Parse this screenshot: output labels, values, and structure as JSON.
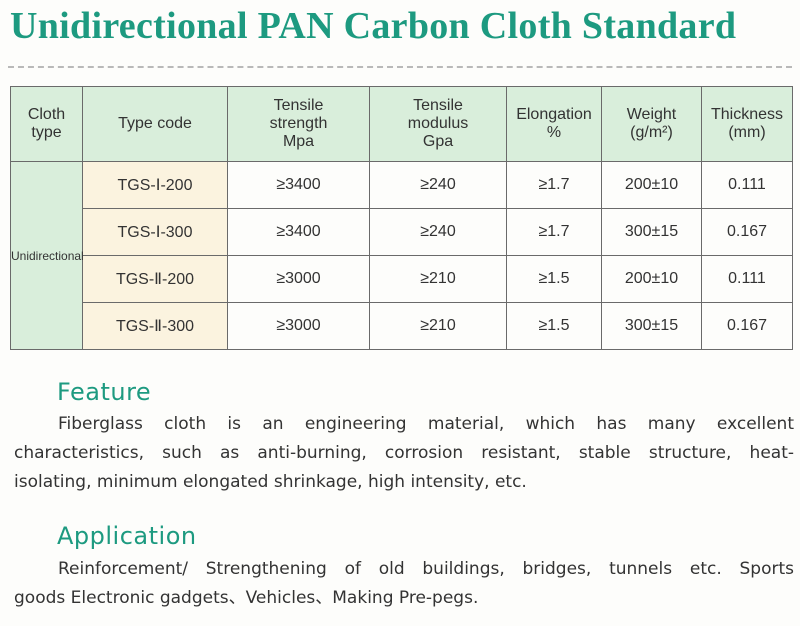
{
  "title": "Unidirectional PAN Carbon Cloth Standard",
  "table": {
    "headers": [
      [
        "Cloth",
        "type"
      ],
      [
        "Type code"
      ],
      [
        "Tensile",
        "strength",
        "Mpa"
      ],
      [
        "Tensile",
        "modulus",
        "Gpa"
      ],
      [
        "Elongation",
        "%"
      ],
      [
        "Weight",
        "(g/m²)"
      ],
      [
        "Thickness",
        "(mm)"
      ]
    ],
    "cloth_type": "Unidirectional",
    "rows": [
      {
        "code": "TGS-Ⅰ-200",
        "strength": "≥3400",
        "modulus": "≥240",
        "elongation": "≥1.7",
        "weight": "200±10",
        "thickness": "0.111"
      },
      {
        "code": "TGS-Ⅰ-300",
        "strength": "≥3400",
        "modulus": "≥240",
        "elongation": "≥1.7",
        "weight": "300±15",
        "thickness": "0.167"
      },
      {
        "code": "TGS-Ⅱ-200",
        "strength": "≥3000",
        "modulus": "≥210",
        "elongation": "≥1.5",
        "weight": "200±10",
        "thickness": "0.111"
      },
      {
        "code": "TGS-Ⅱ-300",
        "strength": "≥3000",
        "modulus": "≥210",
        "elongation": "≥1.5",
        "weight": "300±15",
        "thickness": "0.167"
      }
    ]
  },
  "feature": {
    "heading": "Feature",
    "lines": [
      "Fiberglass cloth is an engineering material, which has many excellent",
      "characteristics, such as anti-burning, corrosion resistant, stable structure, heat-",
      "isolating, minimum elongated shrinkage, high intensity, etc."
    ]
  },
  "application": {
    "heading": "Application",
    "lines": [
      "Reinforcement/ Strengthening of old buildings, bridges, tunnels etc. Sports",
      "goods Electronic gadgets、Vehicles、Making Pre-pegs."
    ]
  }
}
